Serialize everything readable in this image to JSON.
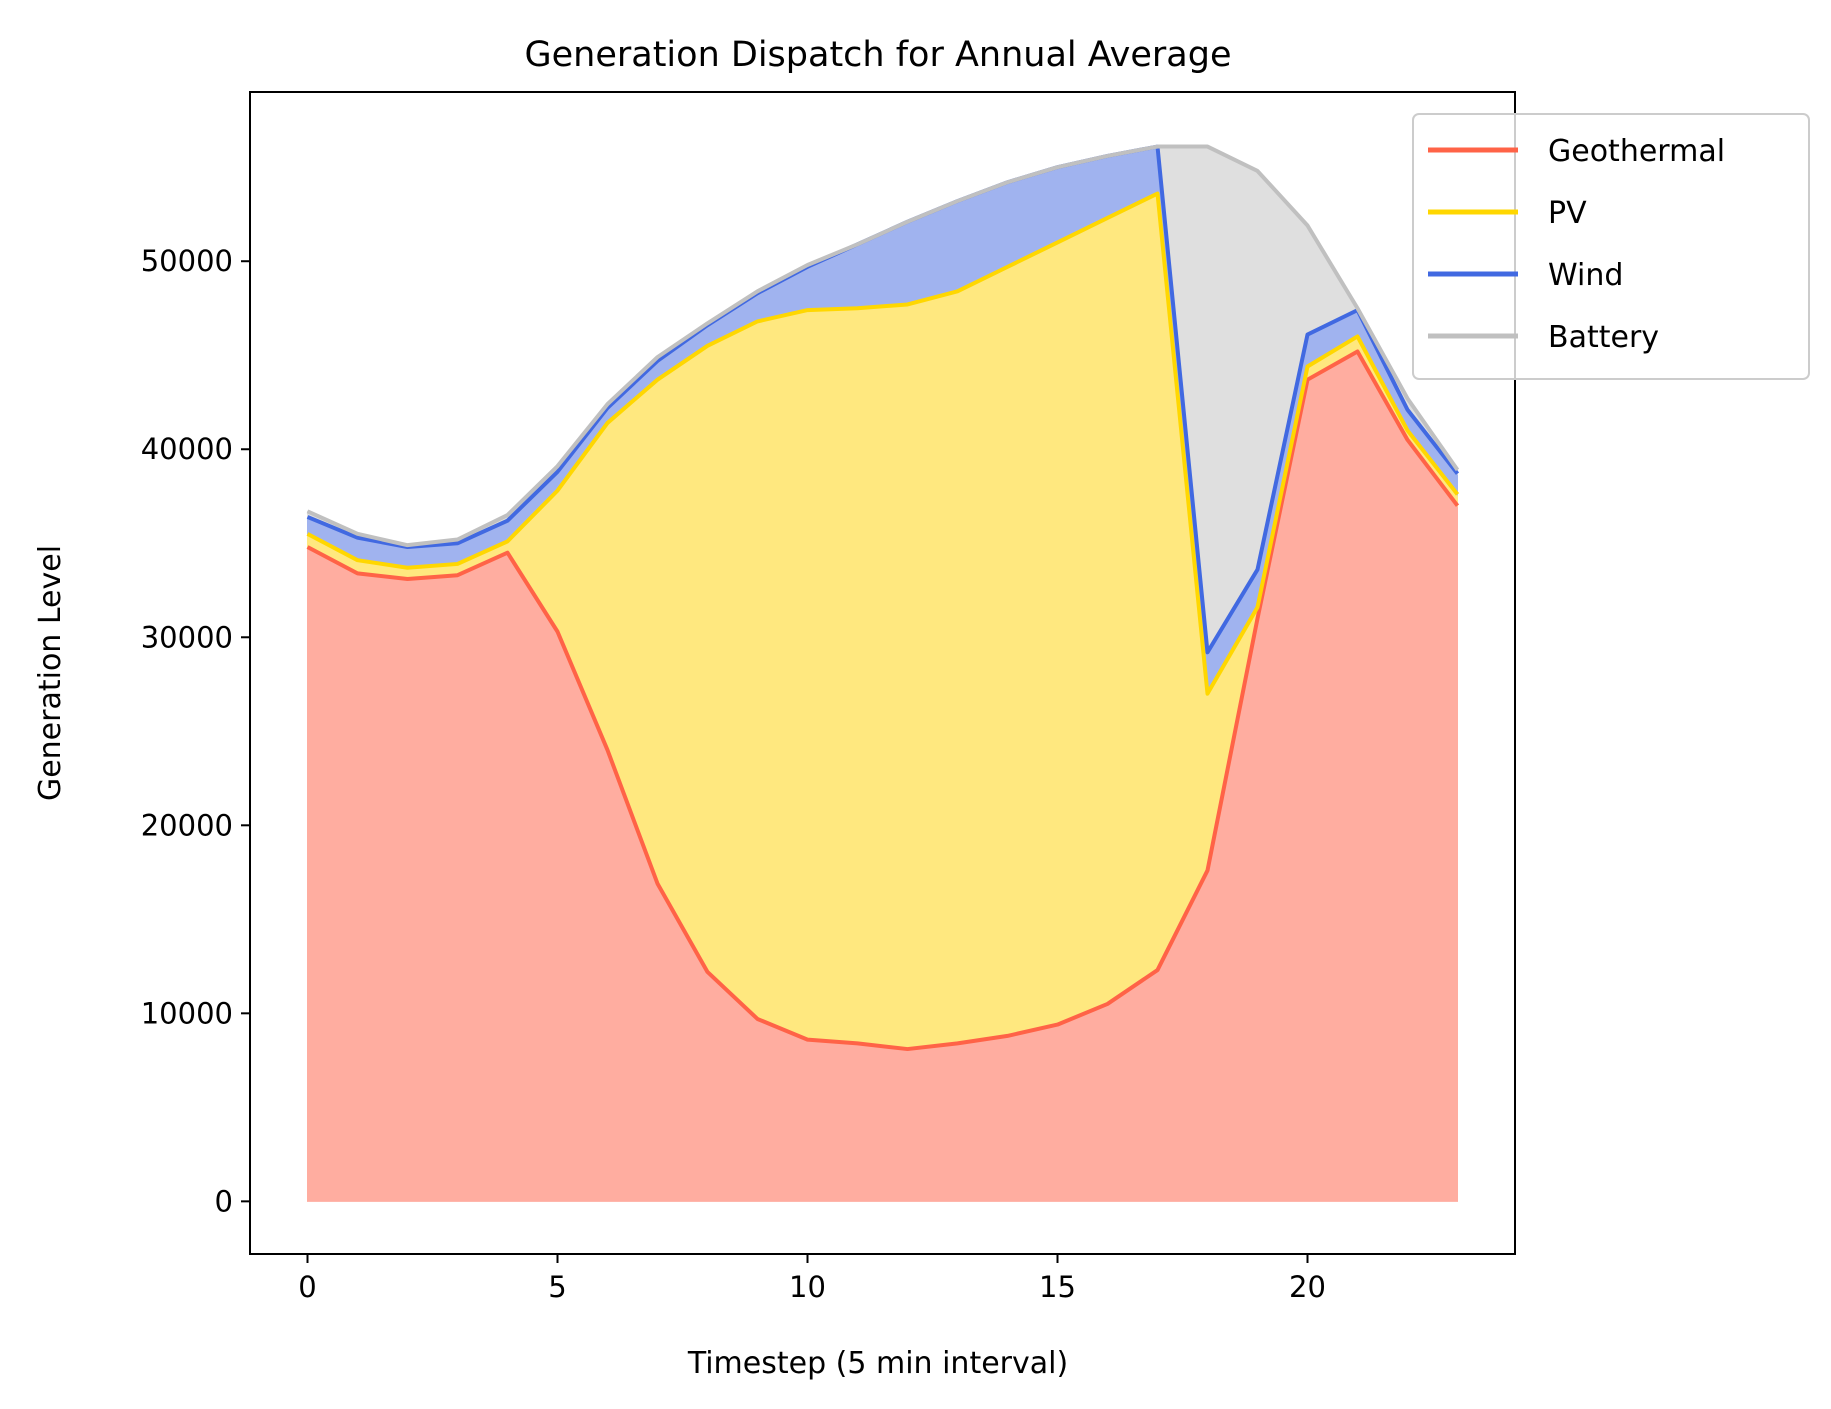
{
  "chart_data": {
    "type": "area",
    "title": "Generation Dispatch for Annual Average",
    "xlabel": "Timestep (5 min interval)",
    "ylabel": "Generation Level",
    "xlim": [
      -1.15,
      24.15
    ],
    "ylim": [
      -2800,
      59000
    ],
    "xticks": [
      0,
      5,
      10,
      15,
      20
    ],
    "yticks": [
      0,
      10000,
      20000,
      30000,
      40000,
      50000
    ],
    "grid": false,
    "legend_position": "top-right",
    "x": [
      0,
      1,
      2,
      3,
      4,
      5,
      6,
      7,
      8,
      9,
      10,
      11,
      12,
      13,
      14,
      15,
      16,
      17,
      18,
      19,
      20,
      21,
      22,
      23
    ],
    "series": [
      {
        "name": "Geothermal",
        "line_color": "#ff6347",
        "fill_color": "#ffada0",
        "cumulative": [
          34800,
          33400,
          33100,
          33300,
          34500,
          30300,
          24000,
          16900,
          12200,
          9700,
          8600,
          8400,
          8100,
          8400,
          8800,
          9400,
          10500,
          12300,
          17600,
          31000,
          43700,
          45200,
          40500,
          37000
        ]
      },
      {
        "name": "PV",
        "line_color": "#ffd700",
        "fill_color": "#ffe87f",
        "cumulative": [
          35500,
          34100,
          33700,
          33900,
          35100,
          37800,
          41400,
          43700,
          45500,
          46800,
          47400,
          47500,
          47700,
          48400,
          49700,
          51000,
          52300,
          53600,
          27000,
          31600,
          44400,
          46000,
          41000,
          37600
        ]
      },
      {
        "name": "Wind",
        "line_color": "#4169e1",
        "fill_color": "#a0b3ef",
        "cumulative": [
          36400,
          35300,
          34800,
          35000,
          36200,
          38800,
          42200,
          44700,
          46600,
          48300,
          49700,
          50900,
          52100,
          53200,
          54200,
          55000,
          55600,
          56100,
          29200,
          33600,
          46100,
          47400,
          42100,
          38700
        ]
      },
      {
        "name": "Battery",
        "line_color": "#c0c0c0",
        "fill_color": "#dfdfdf",
        "cumulative": [
          36700,
          35500,
          34900,
          35200,
          36500,
          39100,
          42400,
          44900,
          46700,
          48400,
          49800,
          50900,
          52100,
          53200,
          54200,
          55000,
          55600,
          56100,
          56100,
          54800,
          51900,
          47500,
          42700,
          38900
        ]
      }
    ]
  }
}
